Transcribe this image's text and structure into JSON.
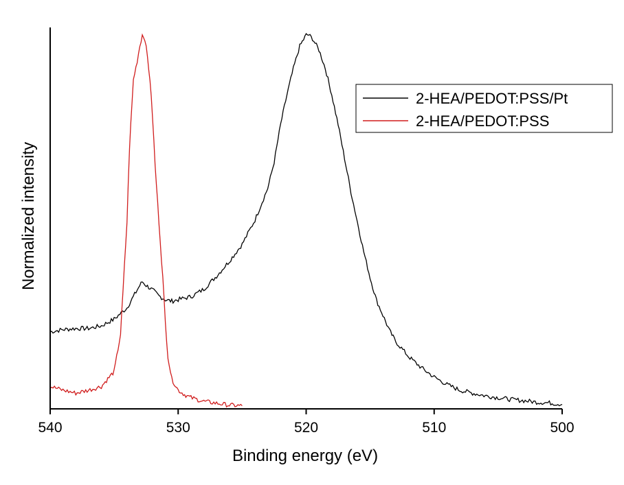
{
  "chart_data": {
    "type": "line",
    "xlabel": "Binding energy (eV)",
    "ylabel": "Normalized intensity",
    "xlim": [
      540,
      500
    ],
    "x_reversed": true,
    "ylim": [
      0,
      1.02
    ],
    "y_ticks_shown": false,
    "x_ticks": [
      540,
      530,
      520,
      510,
      500
    ],
    "x_tick_labels": [
      "540",
      "530",
      "520",
      "510",
      "500"
    ],
    "grid": false,
    "legend_position": "top-right",
    "legend_border": true,
    "series": [
      {
        "name": "2-HEA/PEDOT:PSS/Pt",
        "color": "#000000",
        "x": [
          540,
          539,
          538,
          537,
          536,
          535,
          534,
          533.5,
          533,
          532.8,
          532.5,
          532,
          531.5,
          531,
          530.5,
          530,
          529,
          528,
          527,
          526,
          525,
          524,
          523,
          522.5,
          522,
          521.5,
          521,
          520.5,
          520,
          519.8,
          519.5,
          519,
          518.5,
          518,
          517.5,
          517,
          516.5,
          516,
          515.5,
          515,
          514.5,
          514,
          513.5,
          513,
          512,
          511,
          510,
          509,
          508,
          507,
          506,
          505,
          504,
          503,
          502,
          501,
          500
        ],
        "y": [
          0.206,
          0.212,
          0.215,
          0.215,
          0.222,
          0.24,
          0.27,
          0.3,
          0.33,
          0.34,
          0.33,
          0.318,
          0.302,
          0.292,
          0.288,
          0.292,
          0.3,
          0.32,
          0.355,
          0.395,
          0.44,
          0.505,
          0.59,
          0.66,
          0.76,
          0.84,
          0.91,
          0.97,
          1.0,
          1.0,
          0.99,
          0.96,
          0.91,
          0.84,
          0.76,
          0.67,
          0.58,
          0.5,
          0.42,
          0.35,
          0.29,
          0.25,
          0.21,
          0.18,
          0.14,
          0.11,
          0.085,
          0.065,
          0.05,
          0.042,
          0.035,
          0.03,
          0.025,
          0.022,
          0.018,
          0.016,
          0.012
        ]
      },
      {
        "name": "2-HEA/PEDOT:PSS",
        "color": "#d01c1c",
        "x": [
          540,
          539,
          538,
          537,
          536,
          535.5,
          535,
          534.5,
          534,
          533.8,
          533.5,
          533.2,
          533,
          532.8,
          532.6,
          532.4,
          532.2,
          532,
          531.8,
          531.5,
          531.2,
          531,
          530.8,
          530.5,
          530,
          529.5,
          529,
          528,
          527,
          526,
          525
        ],
        "y": [
          0.06,
          0.05,
          0.042,
          0.05,
          0.06,
          0.08,
          0.1,
          0.2,
          0.5,
          0.7,
          0.88,
          0.93,
          0.97,
          1.0,
          0.99,
          0.94,
          0.88,
          0.78,
          0.65,
          0.5,
          0.35,
          0.23,
          0.14,
          0.08,
          0.05,
          0.038,
          0.03,
          0.02,
          0.015,
          0.01,
          0.008
        ]
      }
    ]
  }
}
